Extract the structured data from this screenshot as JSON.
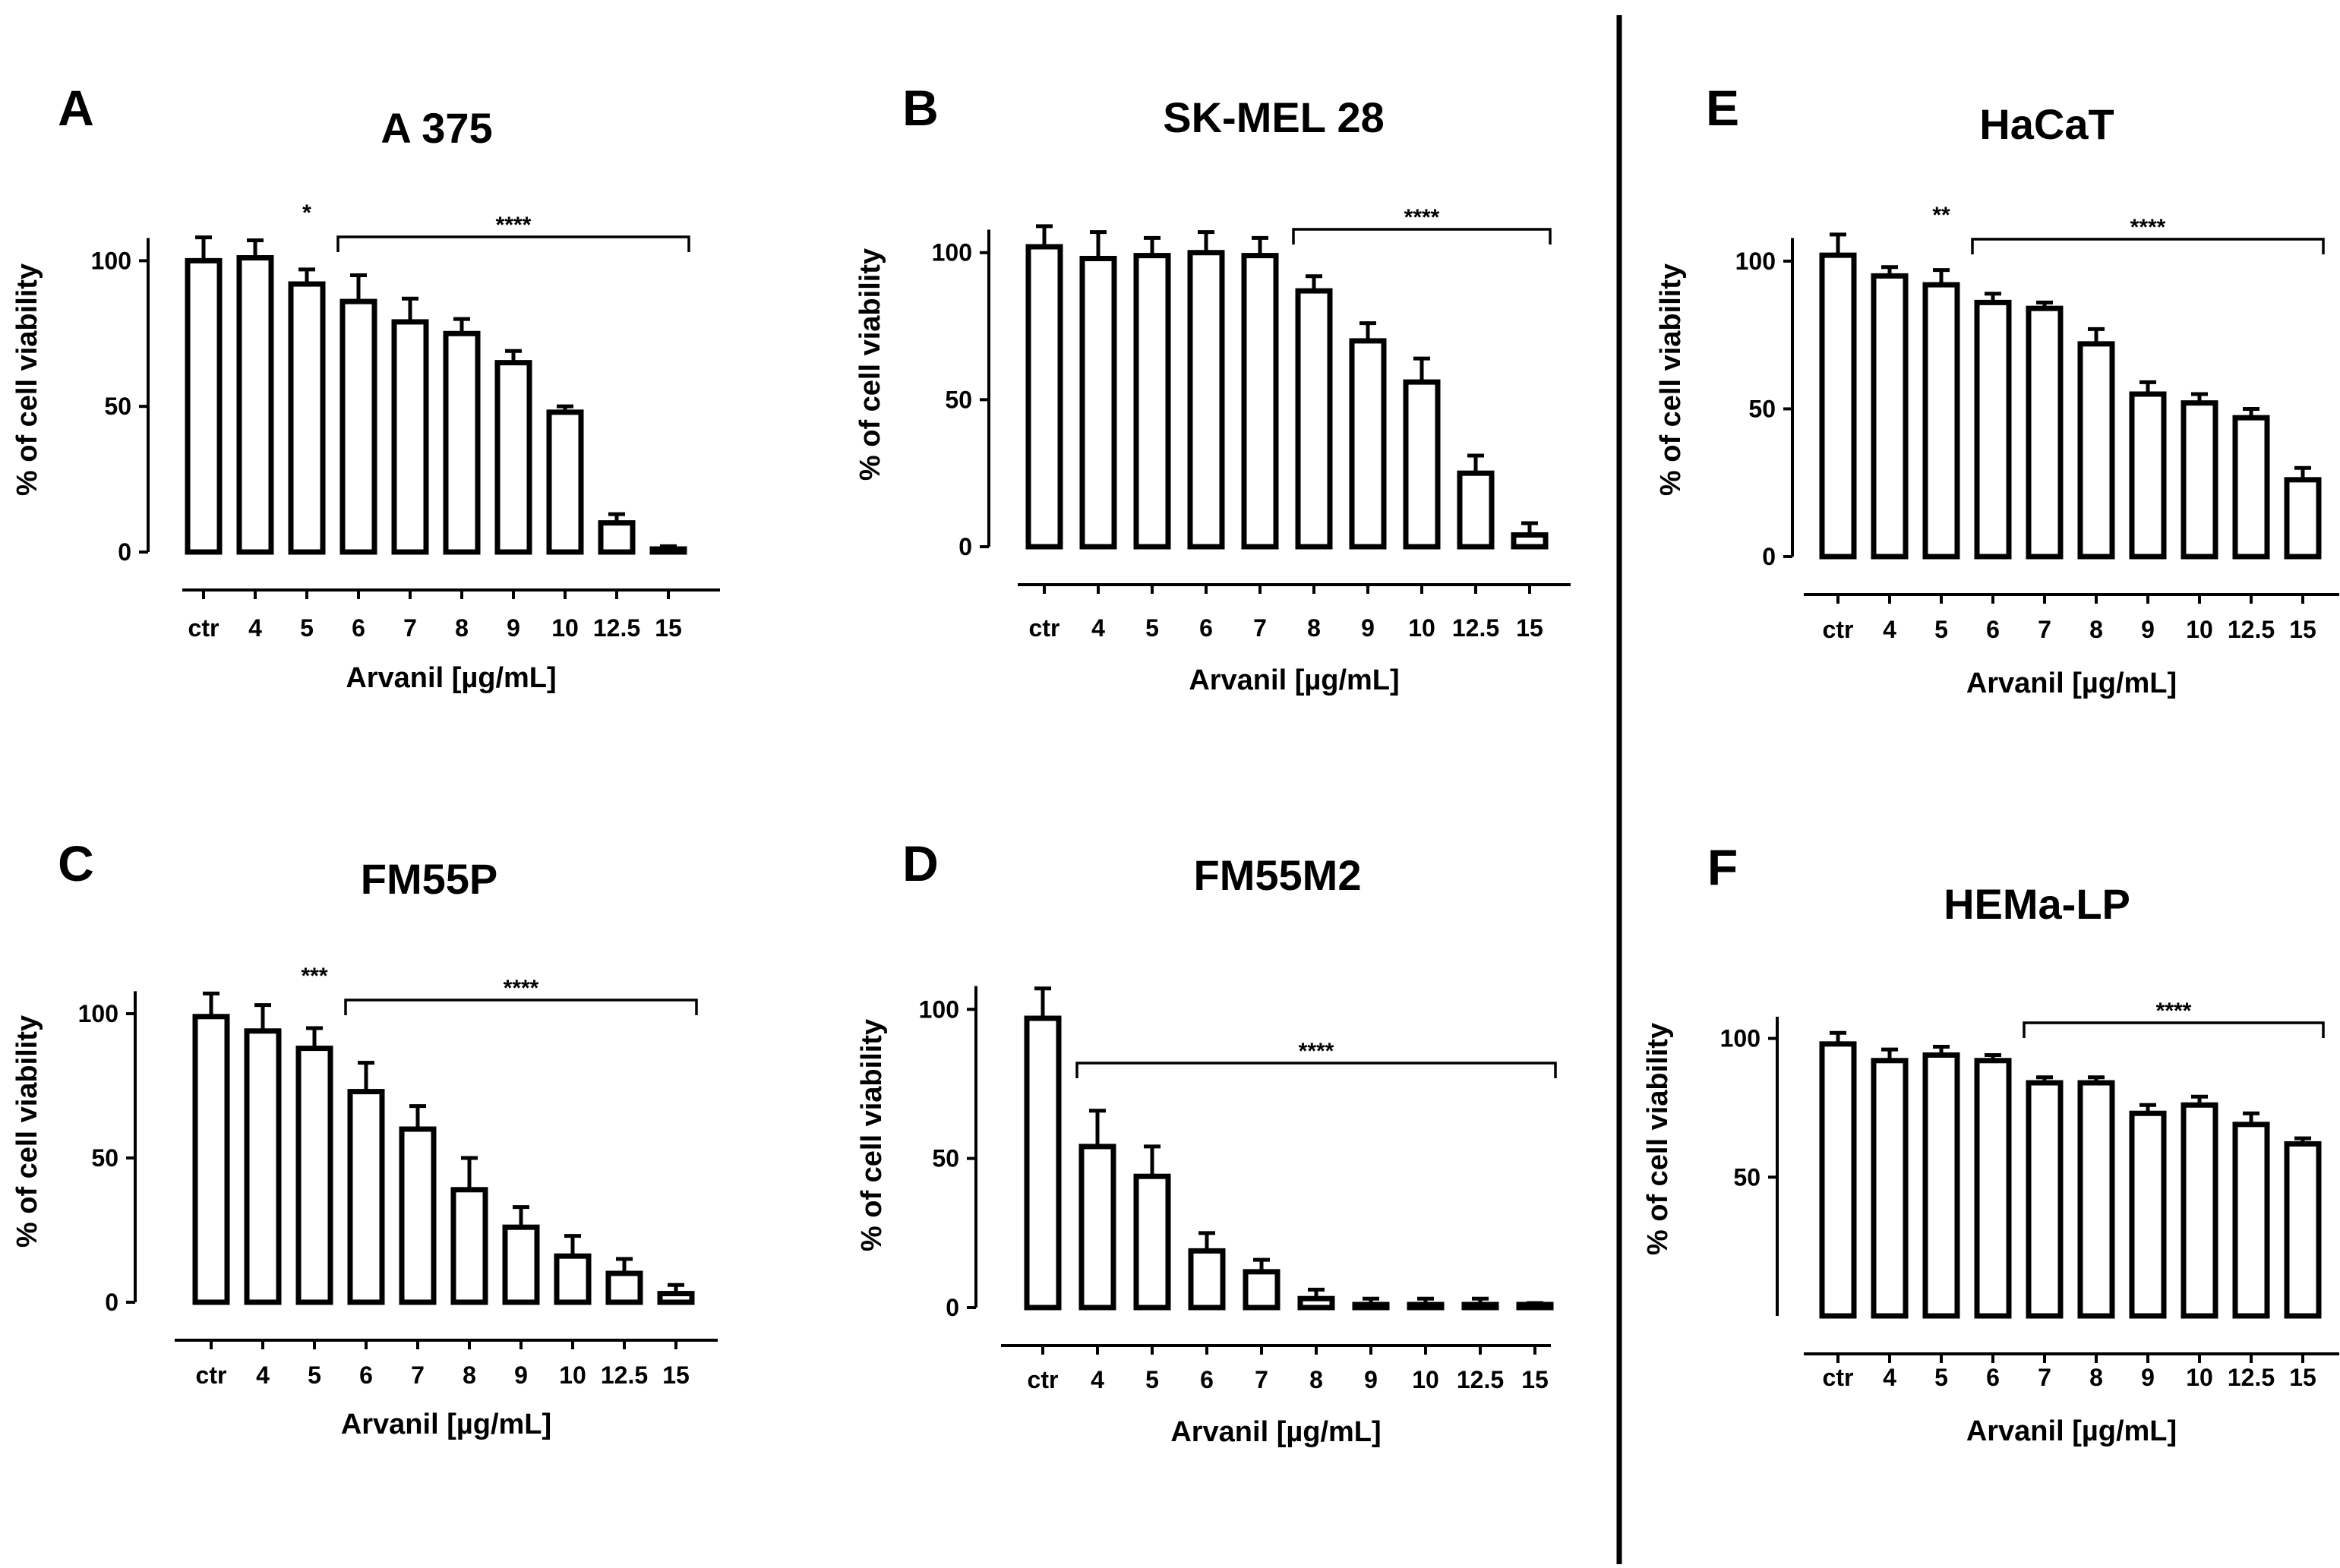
{
  "figure": {
    "x_categories": [
      "ctr",
      "4",
      "5",
      "6",
      "7",
      "8",
      "9",
      "10",
      "12.5",
      "15"
    ],
    "xlabel": "Arvanil [µg/mL]",
    "ylabel": "% of cell viability",
    "bar_fill": "#ffffff",
    "line_color": "#000000"
  },
  "chart_data": [
    {
      "panel": "A",
      "title": "A 375",
      "type": "bar",
      "categories": [
        "ctr",
        "4",
        "5",
        "6",
        "7",
        "8",
        "9",
        "10",
        "12.5",
        "15"
      ],
      "values": [
        100,
        101,
        92,
        86,
        79,
        75,
        65,
        48,
        10,
        1
      ],
      "errors": [
        8,
        6,
        5,
        9,
        8,
        5,
        4,
        2,
        3,
        1
      ],
      "xlabel": "Arvanil [µg/mL]",
      "ylabel": "% of cell viability",
      "ylim": [
        0,
        110
      ],
      "yticks": [
        0,
        50,
        100
      ],
      "significance": [
        {
          "label": "*",
          "type": "single",
          "index": 2
        },
        {
          "label": "****",
          "type": "bracket",
          "from_index": 3,
          "to_index": 9
        }
      ]
    },
    {
      "panel": "B",
      "title": "SK-MEL 28",
      "type": "bar",
      "categories": [
        "ctr",
        "4",
        "5",
        "6",
        "7",
        "8",
        "9",
        "10",
        "12.5",
        "15"
      ],
      "values": [
        102,
        98,
        99,
        100,
        99,
        87,
        70,
        56,
        25,
        4
      ],
      "errors": [
        7,
        9,
        6,
        7,
        6,
        5,
        6,
        8,
        6,
        4
      ],
      "xlabel": "Arvanil [µg/mL]",
      "ylabel": "% of cell viability",
      "ylim": [
        0,
        110
      ],
      "yticks": [
        0,
        50,
        100
      ],
      "significance": [
        {
          "label": "****",
          "type": "bracket",
          "from_index": 5,
          "to_index": 9
        }
      ]
    },
    {
      "panel": "C",
      "title": "FM55P",
      "type": "bar",
      "categories": [
        "ctr",
        "4",
        "5",
        "6",
        "7",
        "8",
        "9",
        "10",
        "12.5",
        "15"
      ],
      "values": [
        99,
        94,
        88,
        73,
        60,
        39,
        26,
        16,
        10,
        3
      ],
      "errors": [
        8,
        9,
        7,
        10,
        8,
        11,
        7,
        7,
        5,
        3
      ],
      "xlabel": "Arvanil [µg/mL]",
      "ylabel": "% of cell viability",
      "ylim": [
        0,
        110
      ],
      "yticks": [
        0,
        50,
        100
      ],
      "significance": [
        {
          "label": "***",
          "type": "single",
          "index": 2
        },
        {
          "label": "****",
          "type": "bracket",
          "from_index": 3,
          "to_index": 9
        }
      ]
    },
    {
      "panel": "D",
      "title": "FM55M2",
      "type": "bar",
      "categories": [
        "ctr",
        "4",
        "5",
        "6",
        "7",
        "8",
        "9",
        "10",
        "12.5",
        "15"
      ],
      "values": [
        97,
        54,
        44,
        19,
        12,
        3,
        1,
        1,
        1,
        0.5
      ],
      "errors": [
        10,
        12,
        10,
        6,
        4,
        3,
        2,
        2,
        2,
        1
      ],
      "xlabel": "Arvanil [µg/mL]",
      "ylabel": "% of cell viability",
      "ylim": [
        0,
        110
      ],
      "yticks": [
        0,
        50,
        100
      ],
      "significance": [
        {
          "label": "****",
          "type": "bracket",
          "from_index": 1,
          "to_index": 9
        }
      ]
    },
    {
      "panel": "E",
      "title": "HaCaT",
      "type": "bar",
      "categories": [
        "ctr",
        "4",
        "5",
        "6",
        "7",
        "8",
        "9",
        "10",
        "12.5",
        "15"
      ],
      "values": [
        102,
        95,
        92,
        86,
        84,
        72,
        55,
        52,
        47,
        26
      ],
      "errors": [
        7,
        3,
        5,
        3,
        2,
        5,
        4,
        3,
        3,
        4
      ],
      "xlabel": "Arvanil [µg/mL]",
      "ylabel": "% of cell viability",
      "ylim": [
        0,
        110
      ],
      "yticks": [
        0,
        50,
        100
      ],
      "significance": [
        {
          "label": "**",
          "type": "single",
          "index": 2
        },
        {
          "label": "****",
          "type": "bracket",
          "from_index": 3,
          "to_index": 9
        }
      ]
    },
    {
      "panel": "F",
      "title": "HEMa-LP",
      "type": "bar",
      "categories": [
        "ctr",
        "4",
        "5",
        "6",
        "7",
        "8",
        "9",
        "10",
        "12.5",
        "15"
      ],
      "values": [
        98,
        92,
        94,
        92,
        84,
        84,
        73,
        76,
        69,
        62
      ],
      "errors": [
        4,
        4,
        3,
        2,
        2,
        2,
        3,
        3,
        4,
        2
      ],
      "xlabel": "Arvanil [µg/mL]",
      "ylabel": "% of cell viability",
      "ylim": [
        0,
        110
      ],
      "yticks": [
        50,
        100
      ],
      "significance": [
        {
          "label": "****",
          "type": "bracket",
          "from_index": 4,
          "to_index": 9
        }
      ]
    }
  ]
}
